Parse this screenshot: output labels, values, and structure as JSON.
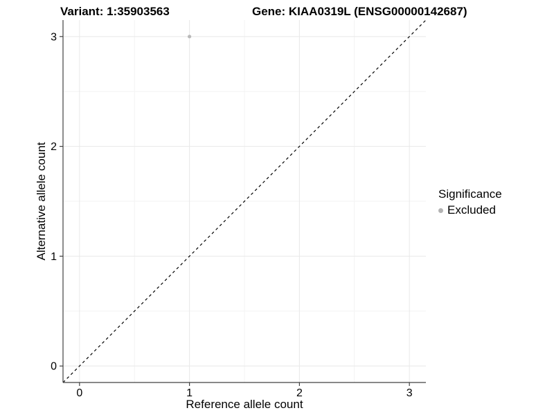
{
  "titles": {
    "variant": "Variant: 1:35903563",
    "gene": "Gene: KIAA0319L (ENSG00000142687)"
  },
  "axes": {
    "x": {
      "label": "Reference allele count"
    },
    "y": {
      "label": "Alternative allele count"
    }
  },
  "legend": {
    "title": "Significance",
    "entries": [
      {
        "label": "Excluded",
        "color": "#b3b3b3"
      }
    ]
  },
  "chart_data": {
    "type": "scatter",
    "title_left": "Variant: 1:35903563",
    "title_right": "Gene: KIAA0319L (ENSG00000142687)",
    "xlabel": "Reference allele count",
    "ylabel": "Alternative allele count",
    "xlim": [
      -0.15,
      3.15
    ],
    "ylim": [
      -0.15,
      3.15
    ],
    "x_major_ticks": [
      0,
      1,
      2,
      3
    ],
    "y_major_ticks": [
      0,
      1,
      2,
      3
    ],
    "x_minor_ticks": [
      0.5,
      1.5,
      2.5
    ],
    "y_minor_ticks": [
      0.5,
      1.5,
      2.5
    ],
    "grid": true,
    "legend_position": "right",
    "series": [
      {
        "name": "Excluded",
        "points": [
          {
            "x": 1,
            "y": 3
          }
        ],
        "color": "#b9b9b9"
      }
    ],
    "reference_line": {
      "type": "identity",
      "equation": "y = x",
      "style": "dashed",
      "color": "#000000"
    },
    "colors": {
      "background": "#ffffff",
      "grid_major": "#e8e8e8",
      "grid_minor": "#f3f3f3",
      "axis_line": "#404040",
      "tick": "#404040",
      "point": "#b9b9b9",
      "text": "#000000"
    }
  }
}
